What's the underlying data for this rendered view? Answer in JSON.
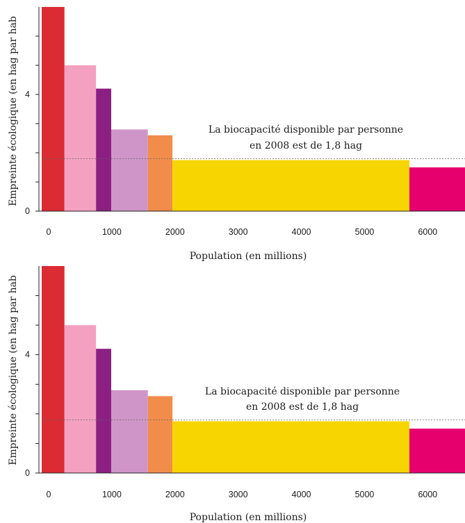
{
  "chart_data": [
    {
      "type": "bar",
      "subtype": "variable-width",
      "xlabel": "Population (en millions)",
      "ylabel": "Empreinte écologique (en hag par hab",
      "xlim": [
        0,
        6700
      ],
      "ylim": [
        0,
        7
      ],
      "x_ticks": [
        0,
        1000,
        2000,
        3000,
        4000,
        5000,
        6000
      ],
      "y_tick_labels": [
        {
          "value": 0,
          "label": "0"
        },
        {
          "value": 4,
          "label": "4"
        }
      ],
      "y_minor_ticks": [
        1,
        2,
        3,
        5,
        6
      ],
      "bars": [
        {
          "x_start": 0,
          "x_end": 360,
          "value": 7.0,
          "color": "#db2b33"
        },
        {
          "x_start": 360,
          "x_end": 860,
          "value": 5.0,
          "color": "#f4a0c0"
        },
        {
          "x_start": 860,
          "x_end": 1100,
          "value": 4.2,
          "color": "#8b1f82"
        },
        {
          "x_start": 1100,
          "x_end": 1680,
          "value": 2.8,
          "color": "#cf95c8"
        },
        {
          "x_start": 1680,
          "x_end": 2070,
          "value": 2.6,
          "color": "#f28c4b"
        },
        {
          "x_start": 2070,
          "x_end": 5820,
          "value": 1.75,
          "color": "#f7d500"
        },
        {
          "x_start": 5820,
          "x_end": 6700,
          "value": 1.5,
          "color": "#e6006e"
        }
      ],
      "reference_line": {
        "value": 1.8
      },
      "annotation": [
        "La biocapacité disponible par personne",
        "en 2008 est de 1,8 hag"
      ]
    },
    {
      "type": "bar",
      "subtype": "variable-width",
      "xlabel": "Population (en millions)",
      "ylabel": "Empreinte écologique (en hag par hab",
      "xlim": [
        0,
        6700
      ],
      "ylim": [
        0,
        7
      ],
      "x_ticks": [
        0,
        1000,
        2000,
        3000,
        4000,
        5000,
        6000
      ],
      "y_tick_labels": [
        {
          "value": 0,
          "label": "0"
        },
        {
          "value": 4,
          "label": "4"
        }
      ],
      "y_minor_ticks": [
        1,
        2,
        3,
        5,
        6
      ],
      "bars": [
        {
          "x_start": 0,
          "x_end": 360,
          "value": 7.0,
          "color": "#db2b33"
        },
        {
          "x_start": 360,
          "x_end": 860,
          "value": 5.0,
          "color": "#f4a0c0"
        },
        {
          "x_start": 860,
          "x_end": 1100,
          "value": 4.2,
          "color": "#8b1f82"
        },
        {
          "x_start": 1100,
          "x_end": 1680,
          "value": 2.8,
          "color": "#cf95c8"
        },
        {
          "x_start": 1680,
          "x_end": 2070,
          "value": 2.6,
          "color": "#f28c4b"
        },
        {
          "x_start": 2070,
          "x_end": 5820,
          "value": 1.75,
          "color": "#f7d500"
        },
        {
          "x_start": 5820,
          "x_end": 6700,
          "value": 1.5,
          "color": "#e6006e"
        }
      ],
      "reference_line": {
        "value": 1.8
      },
      "annotation": [
        "La biocapacité disponible par personne",
        "en 2008 est de 1,8 hag"
      ]
    }
  ]
}
